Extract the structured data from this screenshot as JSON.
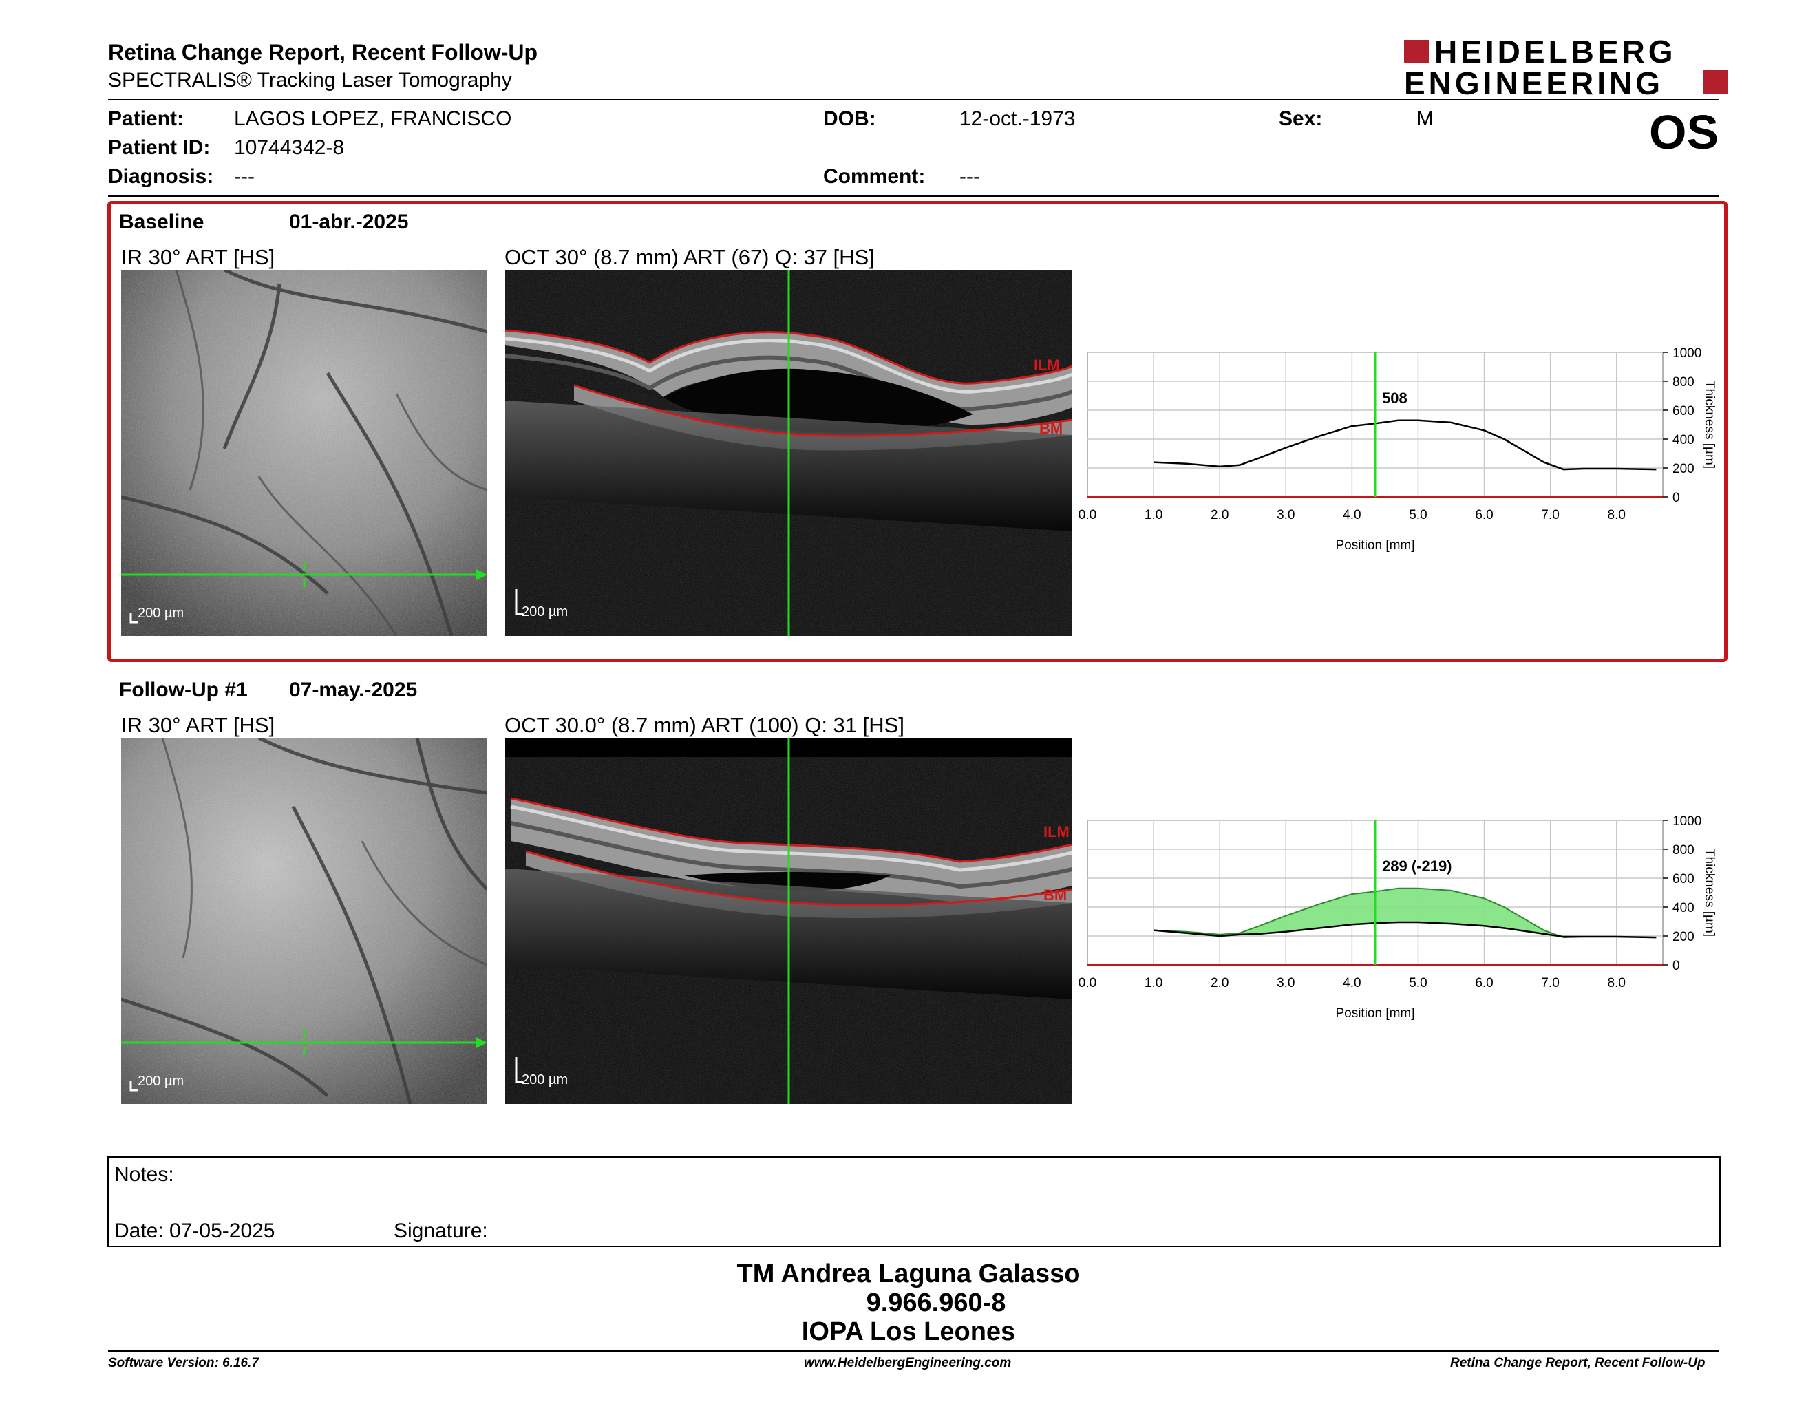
{
  "header": {
    "title": "Retina Change Report, Recent Follow-Up",
    "subtitle": "SPECTRALIS® Tracking Laser Tomography",
    "logo_line1": "HEIDELBERG",
    "logo_line2": "ENGINEERING",
    "eye": "OS"
  },
  "patient": {
    "patient_label": "Patient:",
    "patient_value": "LAGOS LOPEZ, FRANCISCO",
    "id_label": "Patient ID:",
    "id_value": "10744342-8",
    "diagnosis_label": "Diagnosis:",
    "diagnosis_value": "---",
    "dob_label": "DOB:",
    "dob_value": "12-oct.-1973",
    "comment_label": "Comment:",
    "comment_value": "---",
    "sex_label": "Sex:",
    "sex_value": "M"
  },
  "baseline": {
    "label": "Baseline",
    "date": "01-abr.-2025",
    "ir_caption": "IR 30° ART [HS]",
    "oct_caption": "OCT 30° (8.7 mm) ART (67) Q: 37 [HS]",
    "scale_ir": "200 µm",
    "scale_oct": "200 µm",
    "ilm": "ILM",
    "bm": "BM"
  },
  "followup": {
    "label": "Follow-Up #1",
    "date": "07-may.-2025",
    "ir_caption": "IR 30° ART [HS]",
    "oct_caption": "OCT 30.0° (8.7 mm) ART (100) Q: 31 [HS]",
    "scale_ir": "200 µm",
    "scale_oct": "200 µm",
    "ilm": "ILM",
    "bm": "BM"
  },
  "chart_data": [
    {
      "type": "line",
      "xlabel": "Position [mm]",
      "ylabel": "Thickness [µm]",
      "xlim": [
        0,
        8.7
      ],
      "ylim": [
        0,
        1000
      ],
      "x_ticks": [
        "0.0",
        "1.0",
        "2.0",
        "3.0",
        "4.0",
        "5.0",
        "6.0",
        "7.0",
        "8.0"
      ],
      "y_ticks": [
        "0",
        "200",
        "400",
        "600",
        "800",
        "1000"
      ],
      "marker_x": 4.35,
      "marker_label": "508",
      "series": [
        {
          "x": [
            1.0,
            1.5,
            2.0,
            2.3,
            2.6,
            3.0,
            3.5,
            4.0,
            4.35,
            4.7,
            5.0,
            5.5,
            6.0,
            6.3,
            6.6,
            6.9,
            7.2,
            7.5,
            8.0,
            8.6
          ],
          "values": [
            240,
            230,
            210,
            220,
            270,
            340,
            420,
            490,
            508,
            530,
            530,
            515,
            460,
            400,
            320,
            240,
            190,
            195,
            195,
            190
          ]
        }
      ]
    },
    {
      "type": "area",
      "xlabel": "Position [mm]",
      "ylabel": "Thickness [µm]",
      "xlim": [
        0,
        8.7
      ],
      "ylim": [
        0,
        1000
      ],
      "x_ticks": [
        "0.0",
        "1.0",
        "2.0",
        "3.0",
        "4.0",
        "5.0",
        "6.0",
        "7.0",
        "8.0"
      ],
      "y_ticks": [
        "0",
        "200",
        "400",
        "600",
        "800",
        "1000"
      ],
      "marker_x": 4.35,
      "marker_label": "289 (-219)",
      "series": [
        {
          "name": "Baseline",
          "x": [
            1.0,
            1.5,
            2.0,
            2.3,
            2.6,
            3.0,
            3.5,
            4.0,
            4.35,
            4.7,
            5.0,
            5.5,
            6.0,
            6.3,
            6.6,
            6.9,
            7.2,
            7.5,
            8.0,
            8.6
          ],
          "values": [
            240,
            230,
            210,
            220,
            270,
            340,
            420,
            490,
            508,
            530,
            530,
            515,
            460,
            400,
            320,
            240,
            190,
            195,
            195,
            190
          ]
        },
        {
          "name": "Follow-Up",
          "x": [
            1.0,
            1.5,
            2.0,
            2.3,
            2.6,
            3.0,
            3.5,
            4.0,
            4.35,
            4.7,
            5.0,
            5.5,
            6.0,
            6.3,
            6.6,
            6.9,
            7.2,
            7.5,
            8.0,
            8.6
          ],
          "values": [
            240,
            220,
            200,
            210,
            215,
            230,
            255,
            280,
            289,
            295,
            295,
            285,
            270,
            255,
            235,
            215,
            195,
            195,
            195,
            190
          ]
        }
      ],
      "fill_color": "#7ee27e"
    }
  ],
  "notes": {
    "notes_label": "Notes:",
    "date_label": "Date: 07-05-2025",
    "signature_label": "Signature:"
  },
  "signer": {
    "name": "TM Andrea Laguna Galasso",
    "id": "9.966.960-8",
    "org": "IOPA Los Leones"
  },
  "footer": {
    "software": "Software Version: 6.16.7",
    "url": "www.HeidelbergEngineering.com",
    "report": "Retina Change Report, Recent Follow-Up"
  }
}
